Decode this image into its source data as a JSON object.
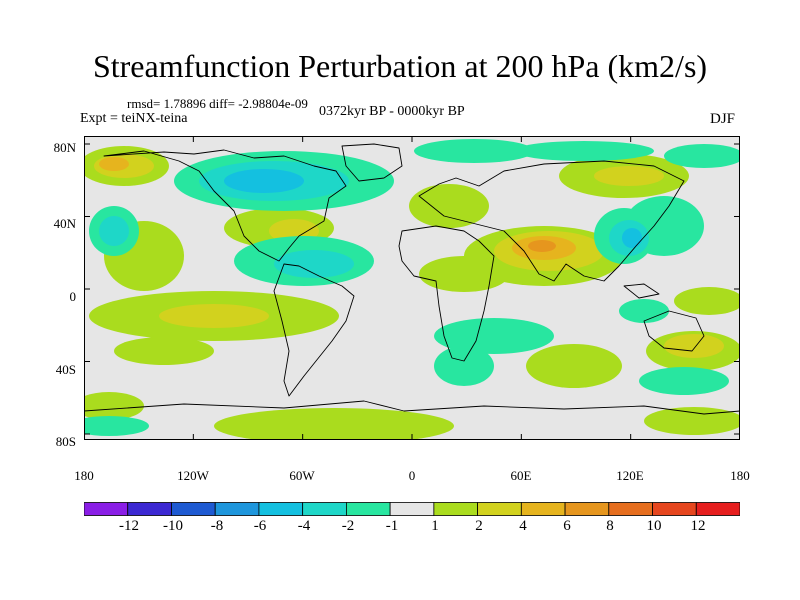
{
  "title": "Streamfunction Perturbation at 200 hPa (km2/s)",
  "stats": "rmsd= 1.78896 diff= -2.98804e-09",
  "experiment": "Expt = teiNX-teina",
  "period": "0372kyr BP - 0000kyr BP",
  "season": "DJF",
  "lat_labels": [
    "80N",
    "40N",
    "0",
    "40S",
    "80S"
  ],
  "lon_labels": [
    "180",
    "120W",
    "60W",
    "0",
    "60E",
    "120E",
    "180"
  ],
  "colorbar": {
    "labels": [
      "-12",
      "-10",
      "-8",
      "-6",
      "-4",
      "-2",
      "-1",
      "1",
      "2",
      "4",
      "6",
      "8",
      "10",
      "12"
    ],
    "colors": [
      "#8a1ee6",
      "#3c28d2",
      "#1e5ad2",
      "#1e96dc",
      "#14c0e0",
      "#1ed7c8",
      "#28e6a0",
      "#e6e6e6",
      "#aadc1e",
      "#d2d21e",
      "#e6b41e",
      "#e6961e",
      "#e66e1e",
      "#e6461e",
      "#e61e1e"
    ]
  },
  "field_colors": {
    "background": "#e6e6e6",
    "pos1": "#aadc1e",
    "pos2": "#d2d21e",
    "pos3": "#e6b41e",
    "pos4": "#e6961e",
    "neg1": "#28e6a0",
    "neg2": "#1ed7c8",
    "neg3": "#14c0e0"
  }
}
